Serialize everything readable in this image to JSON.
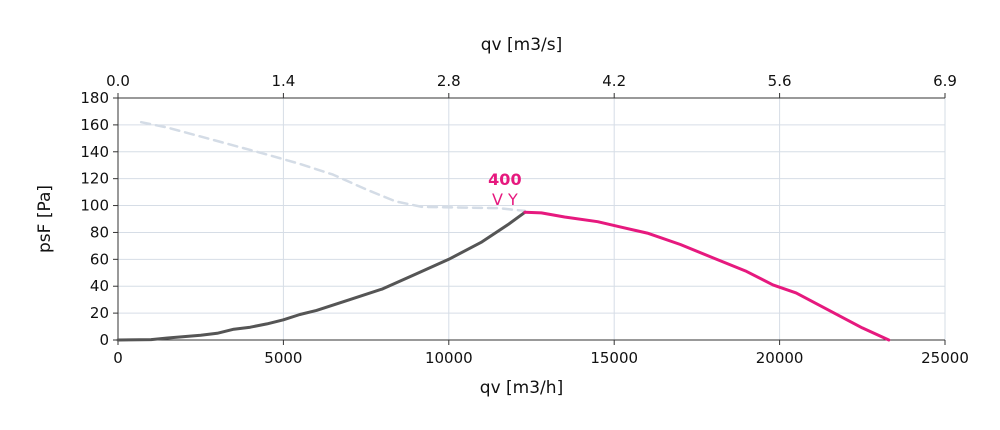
{
  "chart_data": {
    "type": "line",
    "xlabel": "qv [m3/h]",
    "x2label": "qv [m3/s]",
    "ylabel": "psF [Pa]",
    "xlim": [
      0,
      25000
    ],
    "ylim": [
      0,
      180
    ],
    "grid": true,
    "xticks": [
      "0",
      "5000",
      "10000",
      "15000",
      "20000",
      "25000"
    ],
    "xtick_values": [
      0,
      5000,
      10000,
      15000,
      20000,
      25000
    ],
    "x2ticks": [
      "0.0",
      "1.4",
      "2.8",
      "4.2",
      "5.6",
      "6.9"
    ],
    "x2tick_values": [
      0,
      5000,
      10000,
      15000,
      20000,
      25000
    ],
    "yticks": [
      "0",
      "20",
      "40",
      "60",
      "80",
      "100",
      "120",
      "140",
      "160",
      "180"
    ],
    "ytick_values": [
      0,
      20,
      40,
      60,
      80,
      100,
      120,
      140,
      160,
      180
    ],
    "annotation": {
      "lines": [
        "400",
        "V Y"
      ],
      "x": 12300,
      "y": 96,
      "color": "#e6197e"
    },
    "series": [
      {
        "style": "dashed",
        "color": "#d4dce6",
        "points": [
          [
            700,
            162
          ],
          [
            1500,
            158
          ],
          [
            3000,
            148
          ],
          [
            4500,
            138
          ],
          [
            5500,
            131
          ],
          [
            6500,
            123
          ],
          [
            7500,
            112
          ],
          [
            8400,
            103
          ],
          [
            9200,
            99
          ],
          [
            10500,
            98.5
          ],
          [
            11500,
            98
          ],
          [
            12300,
            96
          ]
        ]
      },
      {
        "style": "solid",
        "color": "#555555",
        "points": [
          [
            0,
            0
          ],
          [
            1000,
            0.3
          ],
          [
            1500,
            1.5
          ],
          [
            2500,
            3.5
          ],
          [
            3000,
            5
          ],
          [
            3500,
            8
          ],
          [
            4000,
            9.5
          ],
          [
            4500,
            12
          ],
          [
            5000,
            15
          ],
          [
            5500,
            19
          ],
          [
            6000,
            22
          ],
          [
            7000,
            30
          ],
          [
            8000,
            38
          ],
          [
            9000,
            49
          ],
          [
            10000,
            60
          ],
          [
            11000,
            73
          ],
          [
            11800,
            86
          ],
          [
            12300,
            95
          ]
        ]
      },
      {
        "style": "solid",
        "color": "#e6197e",
        "points": [
          [
            12300,
            95
          ],
          [
            12800,
            94.5
          ],
          [
            13500,
            91.5
          ],
          [
            14500,
            88
          ],
          [
            15200,
            84
          ],
          [
            16000,
            79.5
          ],
          [
            17000,
            71
          ],
          [
            18000,
            61
          ],
          [
            19000,
            51
          ],
          [
            19800,
            41
          ],
          [
            20500,
            35
          ],
          [
            21500,
            22
          ],
          [
            22500,
            9
          ],
          [
            23300,
            0
          ]
        ]
      }
    ]
  }
}
